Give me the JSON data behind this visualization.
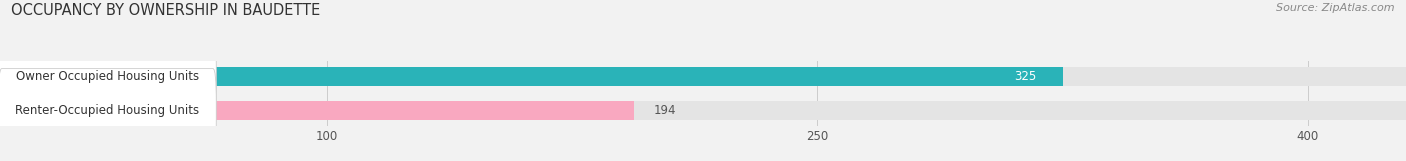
{
  "title": "OCCUPANCY BY OWNERSHIP IN BAUDETTE",
  "source": "Source: ZipAtlas.com",
  "categories": [
    "Owner Occupied Housing Units",
    "Renter-Occupied Housing Units"
  ],
  "values": [
    325,
    194
  ],
  "bar_colors": [
    "#2ab3b8",
    "#f9a8c0"
  ],
  "bar_label_colors": [
    "#ffffff",
    "#555555"
  ],
  "x_ticks": [
    100,
    250,
    400
  ],
  "xlim": [
    0,
    430
  ],
  "background_color": "#f2f2f2",
  "bar_bg_color": "#e4e4e4",
  "title_fontsize": 10.5,
  "source_fontsize": 8,
  "label_fontsize": 8.5,
  "value_fontsize": 8.5,
  "tick_fontsize": 8.5
}
